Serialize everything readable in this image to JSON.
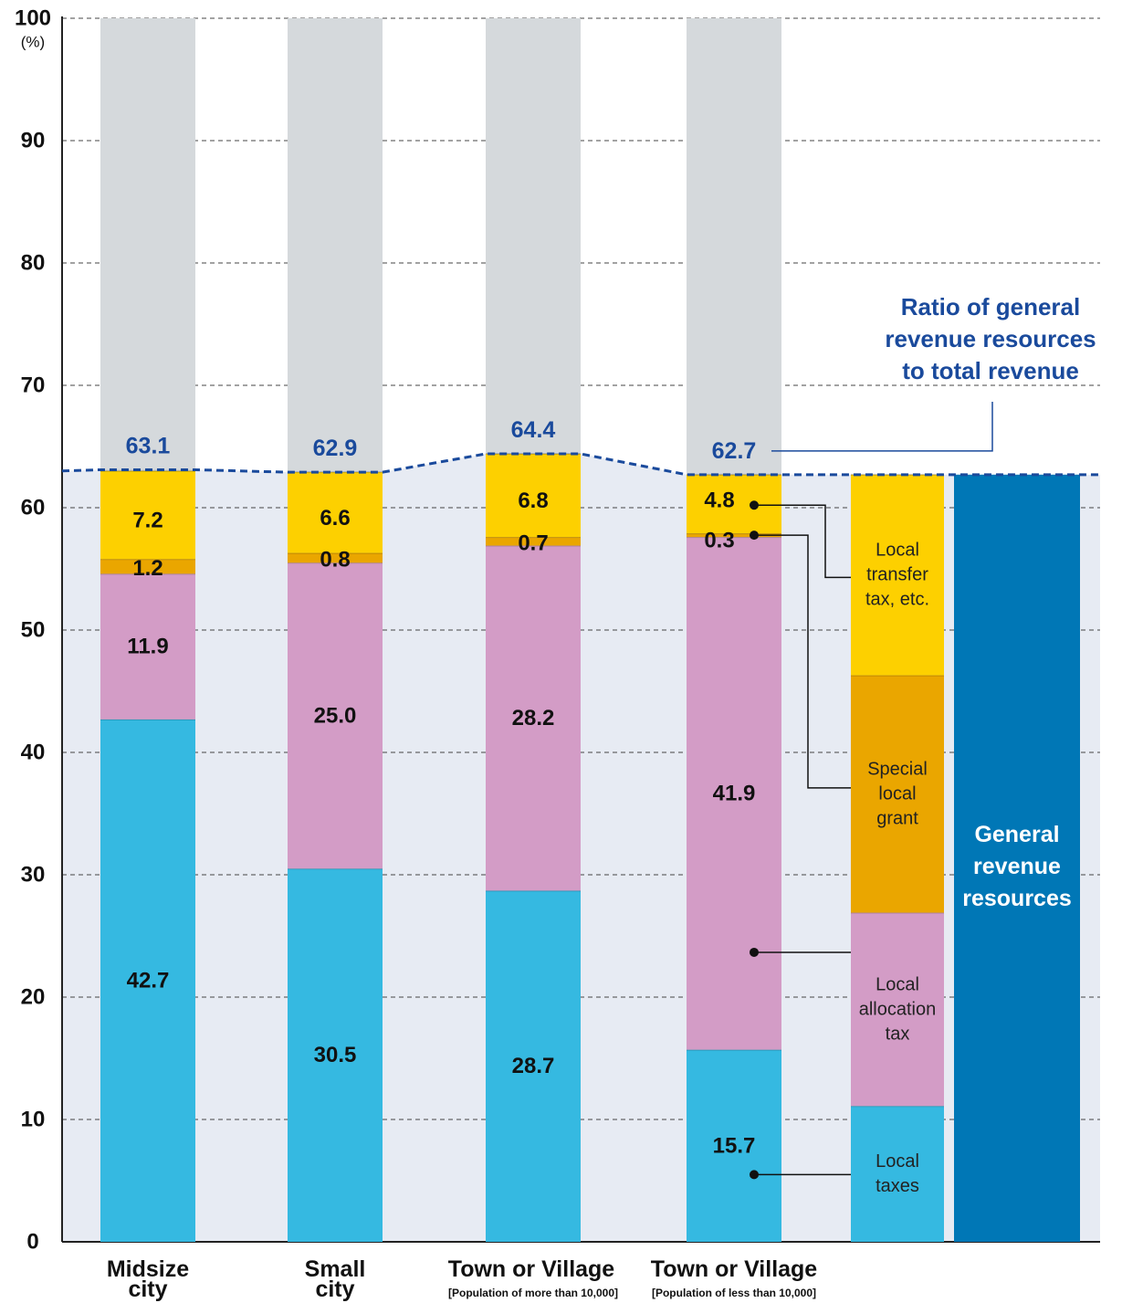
{
  "chart_data": {
    "type": "bar",
    "stacked": true,
    "unit": "(%)",
    "ylim": [
      0,
      100
    ],
    "yticks": [
      0,
      10,
      20,
      30,
      40,
      50,
      60,
      70,
      80,
      90,
      100
    ],
    "grid": "horizontal dashed",
    "categories": [
      {
        "name": "Midsize city",
        "lines": [
          "Midsize",
          "city"
        ],
        "sub": ""
      },
      {
        "name": "Small city",
        "lines": [
          "Small",
          "city"
        ],
        "sub": ""
      },
      {
        "name": "Town or Village",
        "lines": [
          "Town or Village"
        ],
        "sub": "[Population of more than 10,000]"
      },
      {
        "name": "Town or Village",
        "lines": [
          "Town or Village"
        ],
        "sub": "[Population of less than 10,000]"
      }
    ],
    "series": [
      {
        "name": "Local taxes",
        "values": [
          42.7,
          30.5,
          28.7,
          15.7
        ],
        "color": "#35b9e1"
      },
      {
        "name": "Local allocation tax",
        "values": [
          11.9,
          25.0,
          28.2,
          41.9
        ],
        "color": "#d39cc6"
      },
      {
        "name": "Special local grant",
        "values": [
          1.2,
          0.8,
          0.7,
          0.3
        ],
        "color": "#eaa600"
      },
      {
        "name": "Local transfer tax, etc.",
        "values": [
          7.2,
          6.6,
          6.8,
          4.8
        ],
        "color": "#fdd000"
      }
    ],
    "value_labels": [
      [
        "42.7",
        "11.9",
        "1.2",
        "7.2"
      ],
      [
        "30.5",
        "25.0",
        "0.8",
        "6.6"
      ],
      [
        "28.7",
        "28.2",
        "0.7",
        "6.8"
      ],
      [
        "15.7",
        "41.9",
        "0.3",
        "4.8"
      ]
    ],
    "general_revenue_ratio": {
      "values": [
        63.1,
        62.9,
        64.4,
        62.7
      ],
      "labels": [
        "63.1",
        "62.9",
        "64.4",
        "62.7"
      ],
      "color": "#1a4a9c",
      "annotation": [
        "Ratio of general",
        "revenue resources",
        "to total revenue"
      ]
    },
    "background_color": "#d5d9dc",
    "legend": {
      "placement": "right",
      "items": [
        {
          "lines": [
            "Local",
            "transfer",
            "tax, etc."
          ],
          "color": "#fdd000"
        },
        {
          "lines": [
            "Special",
            "local",
            "grant"
          ],
          "color": "#eaa600"
        },
        {
          "lines": [
            "Local",
            "allocation",
            "tax"
          ],
          "color": "#d39cc6"
        },
        {
          "lines": [
            "Local",
            "taxes"
          ],
          "color": "#35b9e1"
        }
      ],
      "general_label": [
        "General",
        "revenue",
        "resources"
      ],
      "general_color": "#0077b6"
    }
  }
}
